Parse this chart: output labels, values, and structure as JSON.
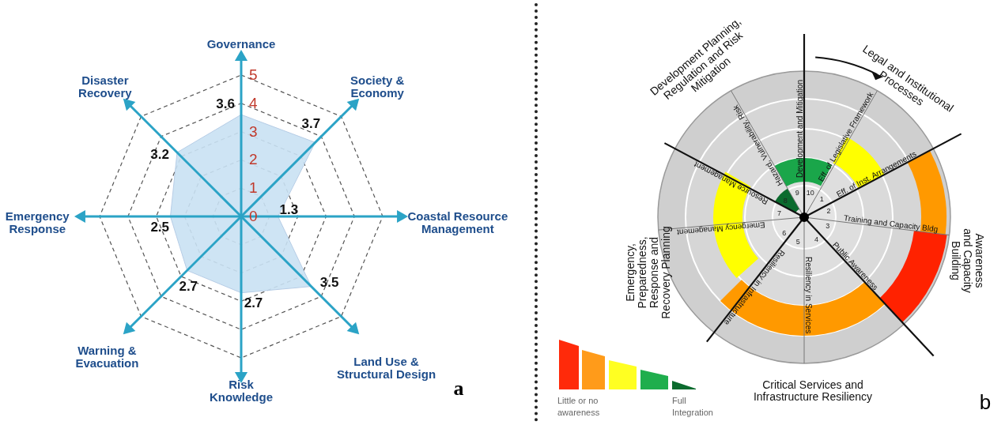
{
  "chart_data": [
    {
      "type": "radar",
      "categories": [
        "Governance",
        "Society & Economy",
        "Coastal Resource Management",
        "Land Use & Structural Design",
        "Risk Knowledge",
        "Warning & Evacuation",
        "Emergency Response",
        "Disaster Recovery"
      ],
      "series": [
        {
          "color": "#c9e1f3",
          "values": [
            3.6,
            3.7,
            1.3,
            3.5,
            2.7,
            2.7,
            2.5,
            3.2
          ]
        }
      ],
      "ylim": [
        0,
        5
      ],
      "yticks": [
        0,
        1,
        2,
        3,
        4,
        5
      ],
      "grid": true,
      "data_labels": true,
      "annotations": [
        "a"
      ]
    },
    {
      "type": "other",
      "categories": [
        "Eff. of Legislative Framework",
        "Eff. of Inst. Arrangements",
        "Training and Capacity Bldg",
        "Public Awareness",
        "Resiliency in Services",
        "Resiliency in Infrastructure",
        "Emergency Management",
        "Resource Management",
        "Hazard, Vulnerability, Risk",
        "Development and Mitigation"
      ],
      "annotations": [
        "Development Planning, Regulation and Risk Mitigation",
        "Legal and Institutional Processes",
        "Awareness and Capacity Building",
        "Critical Services and Infrastructure Resiliency",
        "Emergency, Preparedness, Response and Recovery Planning",
        "Little or no awareness",
        "Full Integration",
        "b",
        "1",
        "2",
        "3",
        "4",
        "5",
        "6",
        "7",
        "8",
        "9",
        "10"
      ]
    }
  ]
}
